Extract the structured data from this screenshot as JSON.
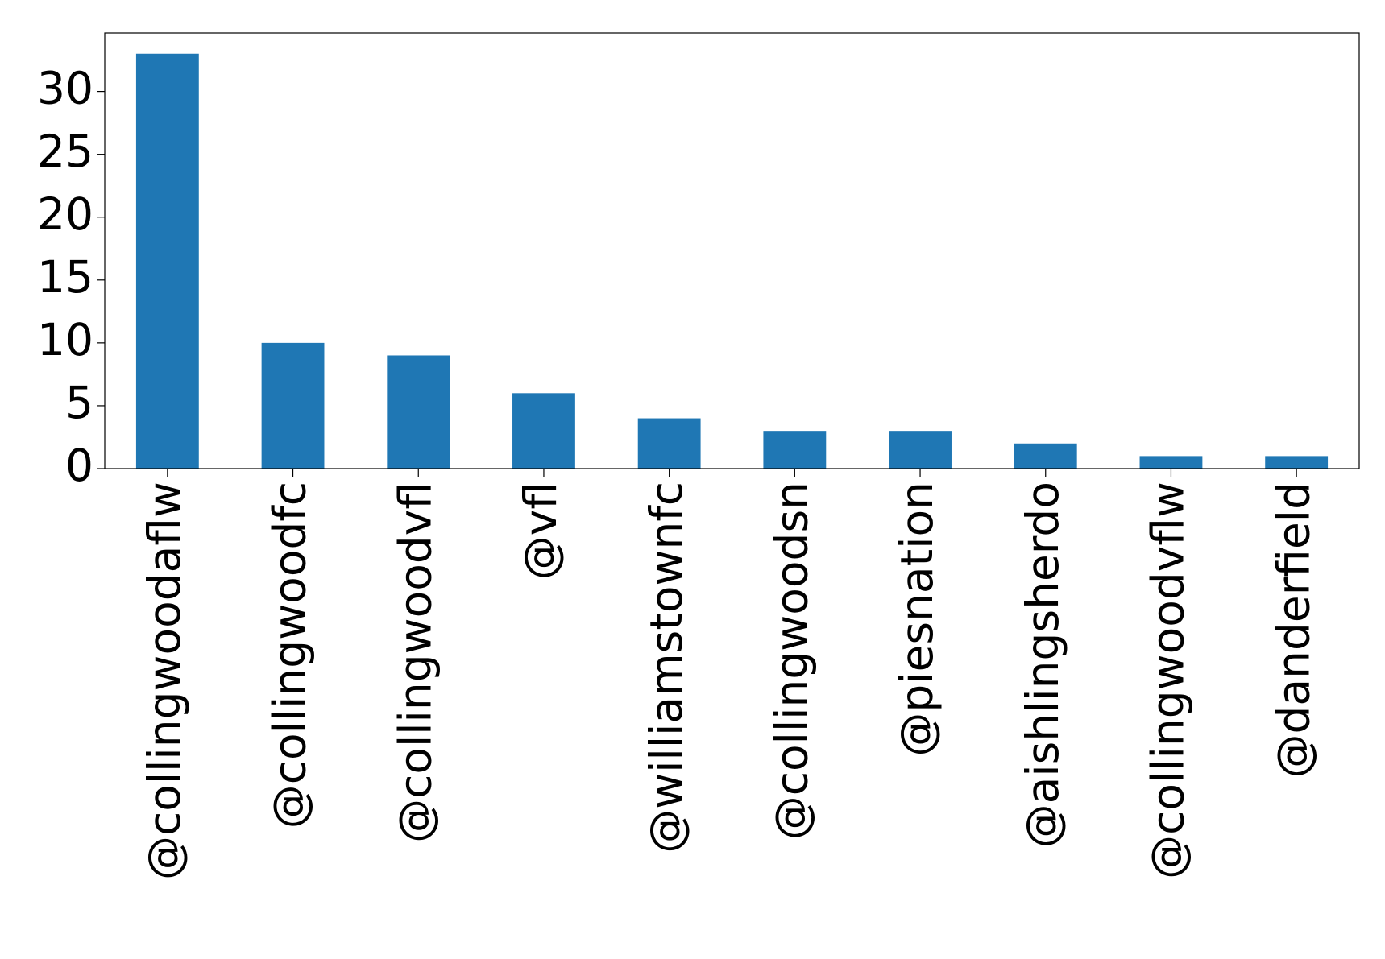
{
  "chart_data": {
    "type": "bar",
    "categories": [
      "@collingwoodaflw",
      "@collingwoodfc",
      "@collingwoodvfl",
      "@vfl",
      "@williamstownfc",
      "@collingwoodsn",
      "@piesnation",
      "@aishlingsherdo",
      "@collingwoodvflw",
      "@danderfield"
    ],
    "values": [
      33,
      10,
      9,
      6,
      4,
      3,
      3,
      2,
      1,
      1
    ],
    "color": "#1f77b4",
    "ylim": [
      0,
      34.65
    ],
    "yticks": [
      0,
      5,
      10,
      15,
      20,
      25,
      30
    ],
    "grid": false
  }
}
